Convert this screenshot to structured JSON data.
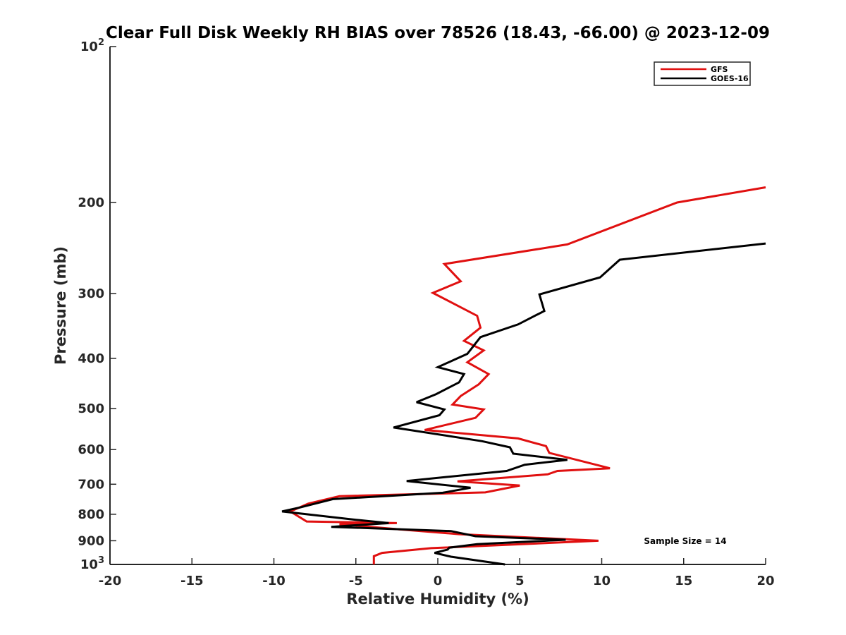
{
  "chart_data": {
    "type": "line",
    "title": "Clear Full Disk Weekly RH BIAS over 78526 (18.43, -66.00) @ 2023-12-09",
    "xlabel": "Relative Humidity (%)",
    "ylabel": "Pressure (mb)",
    "xlim": [
      -20,
      20
    ],
    "ylim": [
      100,
      1000
    ],
    "y_scale": "log",
    "y_reversed": true,
    "x_ticks": [
      "-20",
      "-15",
      "-10",
      "-5",
      "0",
      "5",
      "10",
      "15",
      "20"
    ],
    "y_ticks": [
      {
        "value": 100,
        "label": "10",
        "sup": "2"
      },
      {
        "value": 200,
        "label": "200",
        "sup": ""
      },
      {
        "value": 300,
        "label": "300",
        "sup": ""
      },
      {
        "value": 400,
        "label": "400",
        "sup": ""
      },
      {
        "value": 500,
        "label": "500",
        "sup": ""
      },
      {
        "value": 600,
        "label": "600",
        "sup": ""
      },
      {
        "value": 700,
        "label": "700",
        "sup": ""
      },
      {
        "value": 800,
        "label": "800",
        "sup": ""
      },
      {
        "value": 900,
        "label": "900",
        "sup": ""
      },
      {
        "value": 1000,
        "label": "10",
        "sup": "3"
      }
    ],
    "grid": false,
    "legend_position": "top-right",
    "annotation": "Sample Size = 14",
    "series": [
      {
        "name": "GFS",
        "color": "#e01010",
        "points": [
          [
            20,
            187
          ],
          [
            14.6,
            200
          ],
          [
            7.9,
            241
          ],
          [
            0.4,
            263
          ],
          [
            1.4,
            284
          ],
          [
            -0.3,
            299
          ],
          [
            2.4,
            331
          ],
          [
            2.6,
            349
          ],
          [
            1.6,
            370
          ],
          [
            2.8,
            386
          ],
          [
            1.8,
            407
          ],
          [
            3.1,
            429
          ],
          [
            2.5,
            449
          ],
          [
            1.4,
            473
          ],
          [
            0.9,
            491
          ],
          [
            2.8,
            502
          ],
          [
            2.3,
            521
          ],
          [
            -0.8,
            550
          ],
          [
            4.9,
            571
          ],
          [
            6.6,
            591
          ],
          [
            6.8,
            609
          ],
          [
            10.5,
            652
          ],
          [
            7.3,
            660
          ],
          [
            6.7,
            670
          ],
          [
            1.2,
            691
          ],
          [
            5.0,
            704
          ],
          [
            2.9,
            726
          ],
          [
            -6.0,
            738
          ],
          [
            -7.9,
            763
          ],
          [
            -9.0,
            790
          ],
          [
            -8.0,
            826
          ],
          [
            -2.5,
            832
          ],
          [
            -6.0,
            836
          ],
          [
            -2.3,
            856
          ],
          [
            1.3,
            874
          ],
          [
            9.8,
            900
          ],
          [
            -0.4,
            930
          ],
          [
            -3.4,
            950
          ],
          [
            -3.9,
            964
          ],
          [
            -3.9,
            1000
          ]
        ]
      },
      {
        "name": "GOES-16",
        "color": "#000000",
        "points": [
          [
            20,
            240
          ],
          [
            11.1,
            258
          ],
          [
            9.9,
            279
          ],
          [
            6.2,
            301
          ],
          [
            6.5,
            324
          ],
          [
            4.9,
            344
          ],
          [
            2.6,
            364
          ],
          [
            1.8,
            392
          ],
          [
            0.0,
            416
          ],
          [
            1.6,
            429
          ],
          [
            1.3,
            445
          ],
          [
            -0.1,
            469
          ],
          [
            -1.3,
            486
          ],
          [
            0.4,
            502
          ],
          [
            0.1,
            515
          ],
          [
            -2.7,
            544
          ],
          [
            2.7,
            578
          ],
          [
            4.4,
            594
          ],
          [
            4.6,
            611
          ],
          [
            7.9,
            628
          ],
          [
            5.3,
            642
          ],
          [
            4.2,
            660
          ],
          [
            -1.9,
            690
          ],
          [
            2.0,
            711
          ],
          [
            0.3,
            727
          ],
          [
            -6.4,
            748
          ],
          [
            -8.4,
            776
          ],
          [
            -9.5,
            790
          ],
          [
            -5.0,
            820
          ],
          [
            -3.0,
            832
          ],
          [
            -6.5,
            846
          ],
          [
            0.8,
            862
          ],
          [
            2.3,
            882
          ],
          [
            7.8,
            896
          ],
          [
            2.4,
            914
          ],
          [
            0.7,
            928
          ],
          [
            0.6,
            936
          ],
          [
            -0.2,
            950
          ],
          [
            0.8,
            966
          ],
          [
            4.1,
            1000
          ]
        ]
      }
    ]
  }
}
